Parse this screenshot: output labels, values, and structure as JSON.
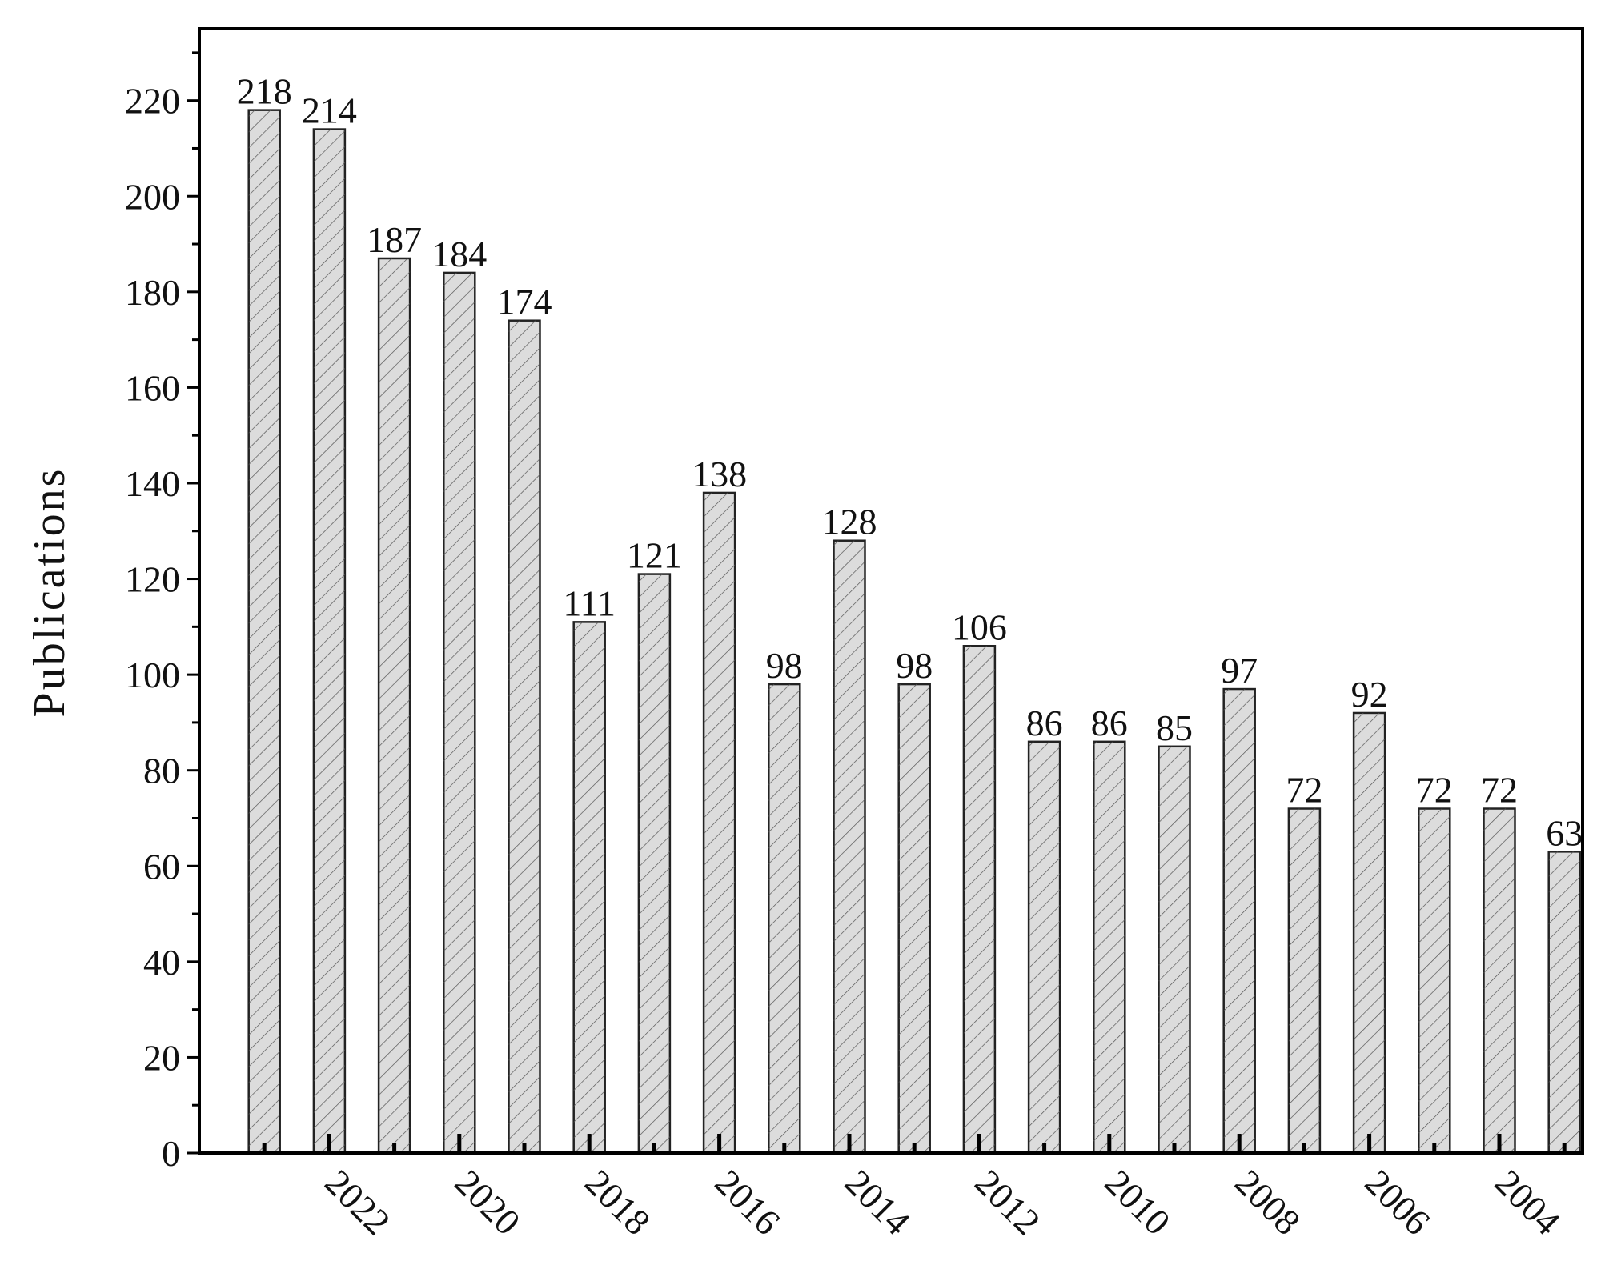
{
  "chart_data": {
    "type": "bar",
    "y_label": "Publications",
    "categories": [
      null,
      "2022",
      null,
      "2020",
      null,
      "2018",
      null,
      "2016",
      null,
      "2014",
      null,
      "2012",
      null,
      "2010",
      null,
      "2008",
      null,
      "2006",
      null,
      "2004",
      null
    ],
    "values": [
      218,
      214,
      187,
      184,
      174,
      111,
      121,
      138,
      98,
      128,
      98,
      106,
      86,
      86,
      85,
      97,
      72,
      92,
      72,
      72,
      63
    ],
    "color": "#dcdcdc",
    "ylim": [
      0,
      235
    ],
    "yticks": [
      0,
      20,
      40,
      60,
      80,
      100,
      120,
      140,
      160,
      180,
      200,
      220
    ]
  }
}
